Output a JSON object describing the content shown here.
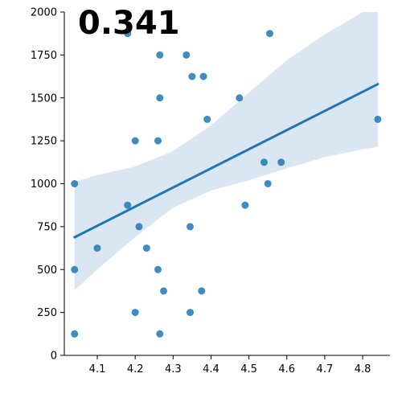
{
  "chart_data": {
    "type": "scatter",
    "annotation": "0.341",
    "xlabel": "",
    "ylabel": "",
    "xlim": [
      4.013,
      4.872
    ],
    "ylim": [
      0,
      2000
    ],
    "xticks": [
      "4.1",
      "4.2",
      "4.3",
      "4.4",
      "4.5",
      "4.6",
      "4.7",
      "4.8"
    ],
    "yticks": [
      "0",
      "250",
      "500",
      "750",
      "1000",
      "1250",
      "1500",
      "1750",
      "2000"
    ],
    "grid": false,
    "point_color": "#1f77b4",
    "line_color": "#1f77b4",
    "band_color": "#dae6f1",
    "points": [
      {
        "x": 4.04,
        "y": 125
      },
      {
        "x": 4.04,
        "y": 500
      },
      {
        "x": 4.04,
        "y": 1000
      },
      {
        "x": 4.1,
        "y": 625
      },
      {
        "x": 4.18,
        "y": 875
      },
      {
        "x": 4.18,
        "y": 1875
      },
      {
        "x": 4.2,
        "y": 250
      },
      {
        "x": 4.2,
        "y": 1250
      },
      {
        "x": 4.21,
        "y": 750
      },
      {
        "x": 4.23,
        "y": 625
      },
      {
        "x": 4.26,
        "y": 500
      },
      {
        "x": 4.26,
        "y": 1250
      },
      {
        "x": 4.265,
        "y": 125
      },
      {
        "x": 4.265,
        "y": 1500
      },
      {
        "x": 4.265,
        "y": 1750
      },
      {
        "x": 4.275,
        "y": 375
      },
      {
        "x": 4.335,
        "y": 1750
      },
      {
        "x": 4.345,
        "y": 250
      },
      {
        "x": 4.345,
        "y": 750
      },
      {
        "x": 4.35,
        "y": 1625
      },
      {
        "x": 4.375,
        "y": 375
      },
      {
        "x": 4.38,
        "y": 1625
      },
      {
        "x": 4.39,
        "y": 1375
      },
      {
        "x": 4.475,
        "y": 1500
      },
      {
        "x": 4.49,
        "y": 875
      },
      {
        "x": 4.54,
        "y": 1125
      },
      {
        "x": 4.55,
        "y": 1000
      },
      {
        "x": 4.555,
        "y": 1875
      },
      {
        "x": 4.585,
        "y": 1125
      },
      {
        "x": 4.84,
        "y": 1375
      }
    ],
    "regression": {
      "x": [
        4.04,
        4.84
      ],
      "y": [
        688,
        1580
      ]
    },
    "confidence_band": {
      "x": [
        4.04,
        4.1,
        4.2,
        4.3,
        4.4,
        4.5,
        4.6,
        4.7,
        4.8,
        4.84
      ],
      "lower": [
        380,
        500,
        690,
        860,
        960,
        1020,
        1090,
        1155,
        1200,
        1215
      ],
      "upper": [
        1010,
        1050,
        1100,
        1190,
        1340,
        1530,
        1720,
        1870,
        2000,
        2000
      ]
    }
  }
}
